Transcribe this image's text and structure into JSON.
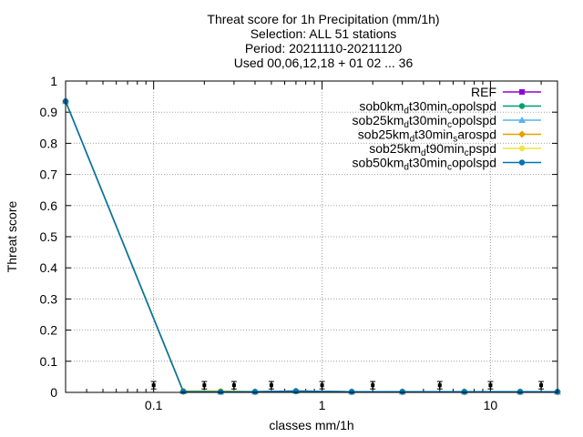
{
  "chart_data": {
    "type": "line",
    "title_lines": [
      "Threat score  for 1h Precipitation (mm/1h)",
      "Selection: ALL     51 stations",
      "Period: 20211110-20211120",
      "Used 00,06,12,18 + 01 02 ... 36"
    ],
    "xlabel": "classes mm/1h",
    "ylabel": "Threat score",
    "xscale": "log",
    "xlim": [
      0.03,
      25
    ],
    "ylim": [
      0,
      1
    ],
    "x_ticks": [
      0.1,
      1,
      10
    ],
    "x_tick_labels": [
      "0.1",
      "1",
      "10"
    ],
    "y_ticks": [
      0,
      0.1,
      0.2,
      0.3,
      0.4,
      0.5,
      0.6,
      0.7,
      0.8,
      0.9,
      1
    ],
    "y_tick_labels": [
      "0",
      "0.1",
      "0.2",
      "0.3",
      "0.4",
      "0.5",
      "0.6",
      "0.7",
      "0.8",
      "0.9",
      "1"
    ],
    "grid": true,
    "legend_position": "top-right",
    "x": [
      0.03,
      0.15,
      0.25,
      0.4,
      0.7,
      1.5,
      3,
      7,
      15,
      25
    ],
    "series": [
      {
        "name": "REF",
        "name_parts": [
          [
            "REF",
            ""
          ]
        ],
        "color": "#9400d3",
        "marker": "square",
        "values": [
          null,
          null,
          null,
          null,
          null,
          null,
          null,
          null,
          null,
          null
        ]
      },
      {
        "name": "sob0km_d t30min_c opolspd",
        "name_parts": [
          [
            "sob0km",
            ""
          ],
          [
            "d",
            "sub"
          ],
          [
            "t30min",
            ""
          ],
          [
            "c",
            "sub"
          ],
          [
            "opolspd",
            ""
          ]
        ],
        "color": "#009e73",
        "marker": "circle",
        "values": [
          0.935,
          0.003,
          0.002,
          0.002,
          0.004,
          0.002,
          0.002,
          0.002,
          0.002,
          0.002
        ]
      },
      {
        "name": "sob25km_d t30min_c opolspd",
        "name_parts": [
          [
            "sob25km",
            ""
          ],
          [
            "d",
            "sub"
          ],
          [
            "t30min",
            ""
          ],
          [
            "c",
            "sub"
          ],
          [
            "opolspd",
            ""
          ]
        ],
        "color": "#56b4e9",
        "marker": "triangle",
        "values": [
          0.935,
          0.003,
          0.002,
          0.002,
          0.004,
          0.002,
          0.002,
          0.002,
          0.002,
          0.002
        ]
      },
      {
        "name": "sob25km_d t30min_s arospd",
        "name_parts": [
          [
            "sob25km",
            ""
          ],
          [
            "d",
            "sub"
          ],
          [
            "t30min",
            ""
          ],
          [
            "s",
            "sub"
          ],
          [
            "arospd",
            ""
          ]
        ],
        "color": "#e69f00",
        "marker": "diamond",
        "values": [
          0.935,
          0.003,
          0.003,
          0.002,
          0.004,
          0.002,
          0.002,
          0.002,
          0.002,
          0.002
        ]
      },
      {
        "name": "sob25km_d t90min_c pspd",
        "name_parts": [
          [
            "sob25km",
            ""
          ],
          [
            "d",
            "sub"
          ],
          [
            "t90min",
            ""
          ],
          [
            "c",
            "sub"
          ],
          [
            "pspd",
            ""
          ]
        ],
        "color": "#f0e442",
        "marker": "circle",
        "values": [
          0.935,
          0.005,
          0.005,
          0.002,
          0.004,
          0.002,
          0.002,
          0.002,
          0.002,
          0.002
        ]
      },
      {
        "name": "sob50km_d t30min_c opolspd",
        "name_parts": [
          [
            "sob50km",
            ""
          ],
          [
            "d",
            "sub"
          ],
          [
            "t30min",
            ""
          ],
          [
            "c",
            "sub"
          ],
          [
            "opolspd",
            ""
          ]
        ],
        "color": "#0072b2",
        "marker": "circle",
        "values": [
          0.935,
          0.003,
          0.002,
          0.002,
          0.004,
          0.002,
          0.002,
          0.002,
          0.002,
          0.002
        ]
      }
    ],
    "class_markers": {
      "color": "#000000",
      "x": [
        0.1,
        0.2,
        0.3,
        0.5,
        1,
        2,
        5,
        10,
        20
      ],
      "center": 0.023,
      "half_range": 0.012
    }
  }
}
